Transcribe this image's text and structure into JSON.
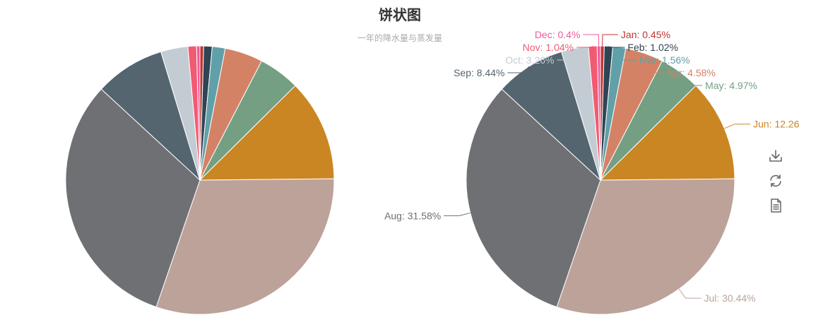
{
  "title": "饼状图",
  "subtitle": "一年的降水量与蒸发量",
  "toolbox": {
    "items": [
      {
        "name": "download-icon"
      },
      {
        "name": "refresh-icon"
      },
      {
        "name": "data-view-icon"
      }
    ]
  },
  "chart_data": [
    {
      "type": "pie",
      "labels": [
        "Jan",
        "Feb",
        "Mar",
        "Apr",
        "May",
        "Jun",
        "Jul",
        "Aug",
        "Sep",
        "Oct",
        "Nov",
        "Dec"
      ],
      "values": [
        0.45,
        1.02,
        1.56,
        4.58,
        4.97,
        12.26,
        30.44,
        31.58,
        8.44,
        3.26,
        1.04,
        0.4
      ],
      "colors": [
        "#c23531",
        "#2f4554",
        "#61a0a8",
        "#d48265",
        "#749f83",
        "#ca8622",
        "#bda29a",
        "#6e7074",
        "#546570",
        "#c4ccd3",
        "#f05b72",
        "#ef5b9c"
      ],
      "show_labels": false
    },
    {
      "type": "pie",
      "labels": [
        "Jan",
        "Feb",
        "Mar",
        "Apr",
        "May",
        "Jun",
        "Jul",
        "Aug",
        "Sep",
        "Oct",
        "Nov",
        "Dec"
      ],
      "values": [
        0.45,
        1.02,
        1.56,
        4.58,
        4.97,
        12.26,
        30.44,
        31.58,
        8.44,
        3.26,
        1.04,
        0.4
      ],
      "value_labels": [
        "Jan: 0.45%",
        "Feb: 1.02%",
        "Mar: 1.56%",
        "Apr: 4.58%",
        "May: 4.97%",
        "Jun: 12.26",
        "Jul: 30.44%",
        "Aug: 31.58%",
        "Sep: 8.44%",
        "Oct: 3.26%",
        "Nov: 1.04%",
        "Dec: 0.4%"
      ],
      "colors": [
        "#c23531",
        "#2f4554",
        "#61a0a8",
        "#d48265",
        "#749f83",
        "#ca8622",
        "#bda29a",
        "#6e7074",
        "#546570",
        "#c4ccd3",
        "#f05b72",
        "#ef5b9c"
      ],
      "show_labels": true
    }
  ]
}
